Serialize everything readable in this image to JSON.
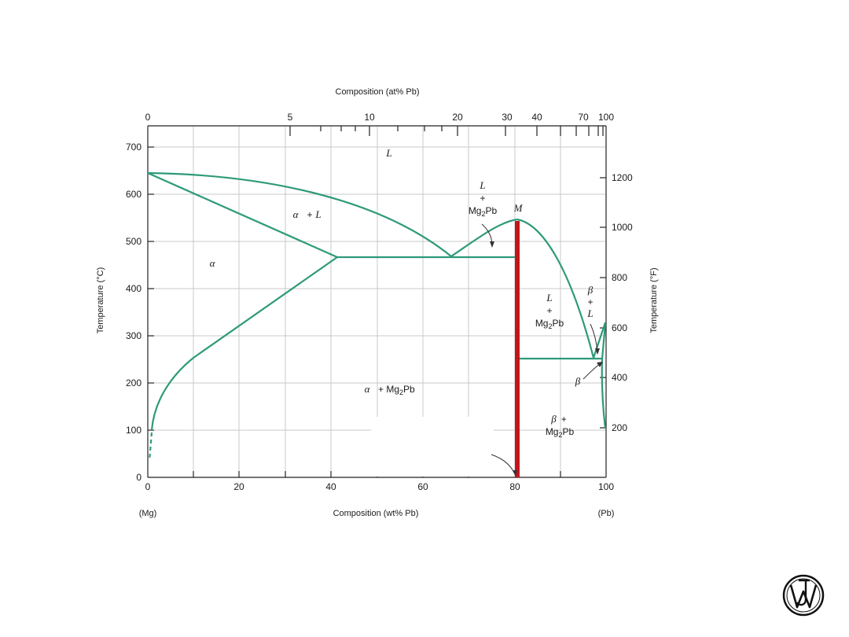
{
  "diagram": {
    "top_axis_title": "Composition (at% Pb)",
    "top_ticks": [
      "0",
      "5",
      "10",
      "20",
      "30",
      "40",
      "70",
      "100"
    ],
    "bottom_axis_title": "Composition (wt% Pb)",
    "bottom_ticks": [
      "0",
      "20",
      "40",
      "60",
      "80",
      "100"
    ],
    "bottom_left_label": "(Mg)",
    "bottom_right_label": "(Pb)",
    "left_axis_title": "Temperature (°C)",
    "left_ticks": [
      "0",
      "100",
      "200",
      "300",
      "400",
      "500",
      "600",
      "700"
    ],
    "right_axis_title": "Temperature (°F)",
    "right_ticks": [
      "200",
      "400",
      "600",
      "800",
      "1000",
      "1200"
    ],
    "phases": {
      "liquid": "L",
      "alpha": "α",
      "alpha_plus_liquid": {
        "alpha": "α",
        "plus": "+",
        "liquid": "L"
      },
      "liquid_plus_mg2pb_left": {
        "liquid": "L",
        "plus": "+",
        "compound": "Mg",
        "subscript": "2",
        "compound_end": "Pb"
      },
      "liquid_plus_mg2pb_right": {
        "liquid": "L",
        "plus": "+",
        "compound": "Mg",
        "subscript": "2",
        "compound_end": "Pb"
      },
      "alpha_plus_mg2pb": {
        "alpha": "α",
        "plus": "+ Mg",
        "subscript": "2",
        "compound_end": "Pb"
      },
      "beta_plus_liquid": {
        "beta": "β",
        "plus": "+",
        "liquid": "L"
      },
      "beta": "β",
      "beta_plus_mg2pb": {
        "beta": "β",
        "plus": "+",
        "compound": "Mg",
        "subscript": "2",
        "compound_end": "Pb"
      },
      "congruent_point": "M"
    },
    "colors": {
      "phase_boundary": "#2e9a7a",
      "compound_line": "#c0161b"
    }
  },
  "logo": {
    "label": "JW",
    "icon": "wiley-logo-icon"
  }
}
